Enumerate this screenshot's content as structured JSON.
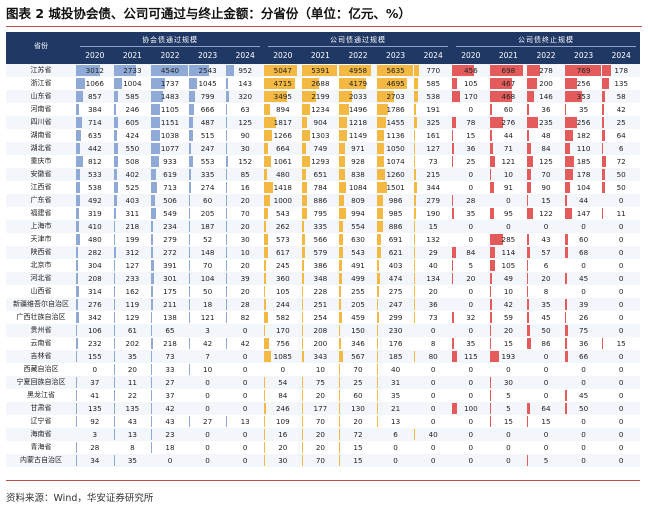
{
  "title": "图表 2  城投协会债、公司可通过与终止金额：分省份（单位：亿元、%）",
  "source": "资料来源：Wind，华安证券研究所",
  "header": {
    "province_label": "省份",
    "group_labels": [
      "协会债通过规模",
      "公司债通过规模",
      "公司债终止规模"
    ],
    "years": [
      "2020",
      "2021",
      "2022",
      "2023",
      "2024"
    ]
  },
  "colors": {
    "header_bg": "#1f3864",
    "association_bar": "#8faad7",
    "corporate_bar": "#f4b942",
    "termination_bar": "#e35b5b"
  },
  "chart_data": {
    "type": "table",
    "provinces": [
      "江苏省",
      "浙江省",
      "山东省",
      "河南省",
      "四川省",
      "湖南省",
      "湖北省",
      "重庆市",
      "安徽省",
      "江西省",
      "广东省",
      "福建省",
      "上海市",
      "天津市",
      "陕西省",
      "北京市",
      "河北省",
      "山西省",
      "新疆维吾尔自治区",
      "广西壮族自治区",
      "贵州省",
      "云南省",
      "吉林省",
      "西藏自治区",
      "宁夏回族自治区",
      "黑龙江省",
      "甘肃省",
      "辽宁省",
      "海南省",
      "青海省",
      "内蒙古自治区"
    ],
    "association_bond": [
      [
        3012,
        2733,
        4540,
        2543,
        952
      ],
      [
        1066,
        1004,
        1737,
        1045,
        143
      ],
      [
        857,
        585,
        1483,
        799,
        320
      ],
      [
        384,
        246,
        1105,
        666,
        63
      ],
      [
        714,
        605,
        1151,
        487,
        125
      ],
      [
        635,
        424,
        1038,
        515,
        90
      ],
      [
        442,
        550,
        1077,
        247,
        30
      ],
      [
        812,
        508,
        933,
        553,
        152
      ],
      [
        533,
        402,
        619,
        335,
        85
      ],
      [
        538,
        525,
        713,
        274,
        16
      ],
      [
        492,
        403,
        506,
        60,
        20
      ],
      [
        319,
        311,
        549,
        205,
        70
      ],
      [
        410,
        218,
        234,
        187,
        20
      ],
      [
        480,
        199,
        279,
        52,
        30
      ],
      [
        282,
        312,
        272,
        148,
        10
      ],
      [
        304,
        127,
        391,
        70,
        20
      ],
      [
        208,
        233,
        301,
        104,
        39
      ],
      [
        314,
        162,
        175,
        50,
        20
      ],
      [
        276,
        119,
        211,
        18,
        28
      ],
      [
        342,
        129,
        138,
        121,
        82
      ],
      [
        106,
        61,
        65,
        3,
        0
      ],
      [
        232,
        202,
        218,
        42,
        42
      ],
      [
        155,
        35,
        73,
        7,
        0
      ],
      [
        0,
        20,
        33,
        10,
        0
      ],
      [
        37,
        11,
        27,
        0,
        0
      ],
      [
        41,
        22,
        37,
        0,
        0
      ],
      [
        135,
        135,
        42,
        0,
        0
      ],
      [
        92,
        43,
        43,
        27,
        13
      ],
      [
        3,
        13,
        23,
        0,
        0
      ],
      [
        28,
        8,
        18,
        0,
        0
      ],
      [
        34,
        35,
        0,
        0,
        0
      ]
    ],
    "corporate_bond": [
      [
        5047,
        5391,
        4958,
        5635,
        770
      ],
      [
        4715,
        2688,
        4179,
        4695,
        585
      ],
      [
        3495,
        2199,
        2033,
        2703,
        538
      ],
      [
        894,
        1234,
        1496,
        1786,
        191
      ],
      [
        1817,
        904,
        1218,
        1455,
        325
      ],
      [
        1266,
        1303,
        1149,
        1136,
        161
      ],
      [
        664,
        749,
        971,
        1050,
        127
      ],
      [
        1061,
        1293,
        928,
        1074,
        73
      ],
      [
        480,
        651,
        838,
        1260,
        215
      ],
      [
        1418,
        784,
        1084,
        1501,
        344
      ],
      [
        1000,
        886,
        809,
        986,
        279
      ],
      [
        543,
        795,
        994,
        985,
        190
      ],
      [
        262,
        335,
        554,
        886,
        15
      ],
      [
        573,
        566,
        630,
        691,
        132
      ],
      [
        617,
        579,
        543,
        621,
        29
      ],
      [
        245,
        386,
        491,
        403,
        40
      ],
      [
        360,
        348,
        499,
        474,
        134
      ],
      [
        105,
        228,
        255,
        275,
        20
      ],
      [
        244,
        251,
        205,
        247,
        36
      ],
      [
        582,
        254,
        459,
        299,
        73
      ],
      [
        170,
        208,
        150,
        230,
        0
      ],
      [
        756,
        200,
        346,
        176,
        8
      ],
      [
        1085,
        343,
        567,
        185,
        80
      ],
      [
        0,
        10,
        70,
        40,
        0
      ],
      [
        54,
        75,
        25,
        31,
        0
      ],
      [
        84,
        20,
        60,
        35,
        0
      ],
      [
        246,
        177,
        130,
        21,
        0
      ],
      [
        109,
        70,
        20,
        13,
        0
      ],
      [
        16,
        20,
        72,
        6,
        40
      ],
      [
        20,
        20,
        15,
        0,
        0
      ],
      [
        30,
        70,
        15,
        0,
        0
      ]
    ],
    "corporate_termination": [
      [
        456,
        698,
        278,
        769,
        178
      ],
      [
        105,
        467,
        200,
        256,
        135
      ],
      [
        170,
        468,
        146,
        353,
        58
      ],
      [
        0,
        60,
        36,
        35,
        42
      ],
      [
        78,
        276,
        235,
        256,
        25
      ],
      [
        15,
        44,
        48,
        182,
        64
      ],
      [
        36,
        71,
        84,
        110,
        6
      ],
      [
        25,
        121,
        125,
        185,
        72
      ],
      [
        0,
        10,
        70,
        178,
        50
      ],
      [
        0,
        91,
        90,
        104,
        50
      ],
      [
        28,
        0,
        15,
        44,
        0
      ],
      [
        35,
        95,
        122,
        147,
        11
      ],
      [
        0,
        0,
        0,
        0,
        0
      ],
      [
        0,
        285,
        43,
        60,
        0
      ],
      [
        84,
        114,
        57,
        68,
        0
      ],
      [
        5,
        105,
        6,
        0,
        0
      ],
      [
        20,
        49,
        20,
        45,
        0
      ],
      [
        0,
        10,
        8,
        0,
        0
      ],
      [
        0,
        42,
        35,
        39,
        0
      ],
      [
        32,
        59,
        45,
        26,
        0
      ],
      [
        0,
        20,
        50,
        75,
        0
      ],
      [
        35,
        15,
        86,
        36,
        15
      ],
      [
        115,
        193,
        0,
        66,
        0
      ],
      [
        0,
        0,
        0,
        0,
        0
      ],
      [
        0,
        30,
        0,
        0,
        0
      ],
      [
        0,
        5,
        0,
        45,
        0
      ],
      [
        100,
        5,
        64,
        50,
        0
      ],
      [
        0,
        15,
        15,
        0,
        0
      ],
      [
        0,
        0,
        0,
        0,
        0
      ],
      [
        0,
        0,
        0,
        0,
        0
      ],
      [
        0,
        0,
        5,
        0,
        0
      ]
    ]
  }
}
